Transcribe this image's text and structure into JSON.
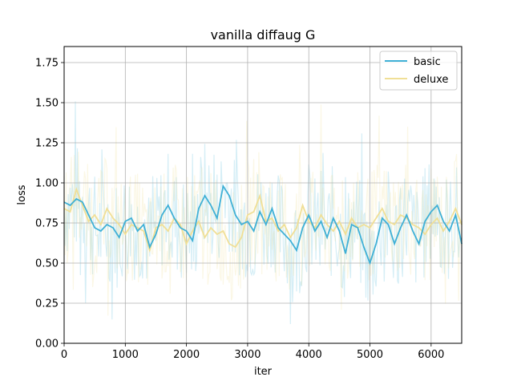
{
  "chart_data": {
    "type": "line",
    "title": "vanilla diffaug G",
    "xlabel": "iter",
    "ylabel": "loss",
    "xlim": [
      0,
      6500
    ],
    "ylim": [
      0.0,
      1.85
    ],
    "xticks": [
      0,
      1000,
      2000,
      3000,
      4000,
      5000,
      6000
    ],
    "xtick_labels": [
      "0",
      "1000",
      "2000",
      "3000",
      "4000",
      "5000",
      "6000"
    ],
    "yticks": [
      0.0,
      0.25,
      0.5,
      0.75,
      1.0,
      1.25,
      1.5,
      1.75
    ],
    "ytick_labels": [
      "0.00",
      "0.25",
      "0.50",
      "0.75",
      "1.00",
      "1.25",
      "1.50",
      "1.75"
    ],
    "grid": true,
    "legend_position": "top-right",
    "series": [
      {
        "name": "basic",
        "color": "#3fb0d6",
        "x": [
          0,
          100,
          200,
          300,
          400,
          500,
          600,
          700,
          800,
          900,
          1000,
          1100,
          1200,
          1300,
          1400,
          1500,
          1600,
          1700,
          1800,
          1900,
          2000,
          2100,
          2200,
          2300,
          2400,
          2500,
          2600,
          2700,
          2800,
          2900,
          3000,
          3100,
          3200,
          3300,
          3400,
          3500,
          3600,
          3700,
          3800,
          3900,
          4000,
          4100,
          4200,
          4300,
          4400,
          4500,
          4600,
          4700,
          4800,
          4900,
          5000,
          5100,
          5200,
          5300,
          5400,
          5500,
          5600,
          5700,
          5800,
          5900,
          6000,
          6100,
          6200,
          6300,
          6400,
          6500
        ],
        "values": [
          0.88,
          0.86,
          0.9,
          0.88,
          0.8,
          0.72,
          0.7,
          0.74,
          0.72,
          0.66,
          0.76,
          0.78,
          0.7,
          0.74,
          0.6,
          0.68,
          0.8,
          0.86,
          0.78,
          0.72,
          0.7,
          0.64,
          0.84,
          0.92,
          0.86,
          0.78,
          0.98,
          0.92,
          0.8,
          0.74,
          0.76,
          0.7,
          0.82,
          0.74,
          0.84,
          0.72,
          0.68,
          0.64,
          0.58,
          0.72,
          0.8,
          0.7,
          0.76,
          0.66,
          0.78,
          0.7,
          0.56,
          0.74,
          0.72,
          0.6,
          0.5,
          0.62,
          0.78,
          0.74,
          0.62,
          0.72,
          0.8,
          0.7,
          0.62,
          0.76,
          0.82,
          0.86,
          0.76,
          0.7,
          0.8,
          0.62
        ]
      },
      {
        "name": "deluxe",
        "color": "#f0df96",
        "x": [
          0,
          100,
          200,
          300,
          400,
          500,
          600,
          700,
          800,
          900,
          1000,
          1100,
          1200,
          1300,
          1400,
          1500,
          1600,
          1700,
          1800,
          1900,
          2000,
          2100,
          2200,
          2300,
          2400,
          2500,
          2600,
          2700,
          2800,
          2900,
          3000,
          3100,
          3200,
          3300,
          3400,
          3500,
          3600,
          3700,
          3800,
          3900,
          4000,
          4100,
          4200,
          4300,
          4400,
          4500,
          4600,
          4700,
          4800,
          4900,
          5000,
          5100,
          5200,
          5300,
          5400,
          5500,
          5600,
          5700,
          5800,
          5900,
          6000,
          6100,
          6200,
          6300,
          6400,
          6500
        ],
        "values": [
          0.84,
          0.82,
          0.96,
          0.86,
          0.76,
          0.8,
          0.74,
          0.84,
          0.78,
          0.74,
          0.68,
          0.74,
          0.72,
          0.7,
          0.58,
          0.72,
          0.74,
          0.7,
          0.78,
          0.74,
          0.62,
          0.7,
          0.76,
          0.66,
          0.72,
          0.68,
          0.7,
          0.62,
          0.6,
          0.66,
          0.8,
          0.82,
          0.92,
          0.76,
          0.78,
          0.7,
          0.74,
          0.66,
          0.72,
          0.86,
          0.76,
          0.72,
          0.8,
          0.74,
          0.7,
          0.76,
          0.68,
          0.78,
          0.72,
          0.74,
          0.72,
          0.78,
          0.84,
          0.76,
          0.74,
          0.8,
          0.78,
          0.74,
          0.72,
          0.68,
          0.74,
          0.78,
          0.7,
          0.76,
          0.84,
          0.74
        ]
      }
    ]
  }
}
